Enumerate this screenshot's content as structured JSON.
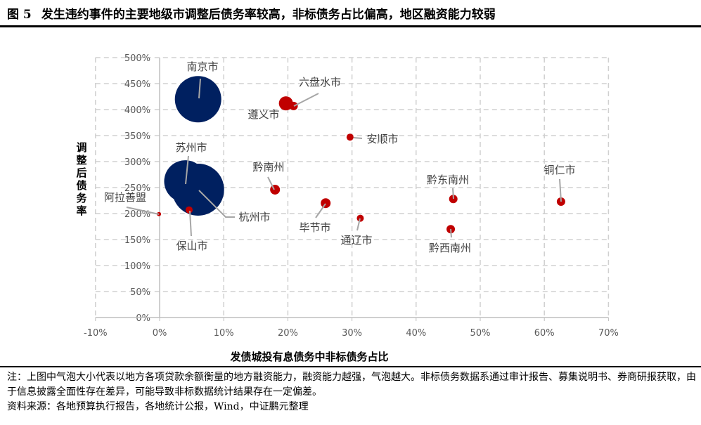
{
  "figure": {
    "number": "图 5",
    "title": "发生违约事件的主要地级市调整后债务率较高，非标债务占比偏高，地区融资能力较弱"
  },
  "chart_data": {
    "type": "bubble",
    "xlabel": "发债城投有息债务中非标债务占比",
    "ylabel": "调整后债务率",
    "xlim": [
      -10,
      70
    ],
    "ylim": [
      0,
      500
    ],
    "xticks": [
      "-10%",
      "0%",
      "10%",
      "20%",
      "30%",
      "40%",
      "50%",
      "60%",
      "70%"
    ],
    "yticks": [
      "0%",
      "50%",
      "100%",
      "150%",
      "200%",
      "250%",
      "300%",
      "350%",
      "400%",
      "450%",
      "500%"
    ],
    "grid": true,
    "colors": {
      "large": "#002060",
      "small": "#c00000",
      "grid": "#d0d0d0",
      "tick_text": "#595959"
    },
    "points": [
      {
        "name": "南京市",
        "x": 6.0,
        "y": 420,
        "size": 33,
        "color": "#002060"
      },
      {
        "name": "苏州市",
        "x": 4.0,
        "y": 262,
        "size": 30,
        "color": "#002060"
      },
      {
        "name": "杭州市",
        "x": 6.0,
        "y": 246,
        "size": 37,
        "color": "#002060"
      },
      {
        "name": "保山市",
        "x": 4.6,
        "y": 207,
        "size": 5,
        "color": "#c00000"
      },
      {
        "name": "阿拉善盟",
        "x": -0.1,
        "y": 199,
        "size": 3,
        "color": "#c00000"
      },
      {
        "name": "遵义市",
        "x": 19.7,
        "y": 412,
        "size": 10,
        "color": "#c00000"
      },
      {
        "name": "六盘水市",
        "x": 20.9,
        "y": 407,
        "size": 6,
        "color": "#c00000"
      },
      {
        "name": "安顺市",
        "x": 29.7,
        "y": 347,
        "size": 5,
        "color": "#c00000"
      },
      {
        "name": "黔南州",
        "x": 18.0,
        "y": 246,
        "size": 7,
        "color": "#c00000"
      },
      {
        "name": "毕节市",
        "x": 25.9,
        "y": 220,
        "size": 7,
        "color": "#c00000"
      },
      {
        "name": "通辽市",
        "x": 31.3,
        "y": 191,
        "size": 5,
        "color": "#c00000"
      },
      {
        "name": "黔东南州",
        "x": 45.8,
        "y": 228,
        "size": 6,
        "color": "#c00000"
      },
      {
        "name": "黔西南州",
        "x": 45.4,
        "y": 170,
        "size": 6,
        "color": "#c00000"
      },
      {
        "name": "铜仁市",
        "x": 62.6,
        "y": 223,
        "size": 6,
        "color": "#c00000"
      }
    ]
  },
  "notes": {
    "note": "注：上图中气泡大小代表以地方各项贷款余额衡量的地方融资能力，融资能力越强，气泡越大。非标债务数据系通过审计报告、募集说明书、券商研报获取，由于信息披露全面性存在差异，可能导致非标数据统计结果存在一定偏差。",
    "source": "资料来源：各地预算执行报告，各地统计公报，Wind，中证鹏元整理"
  }
}
